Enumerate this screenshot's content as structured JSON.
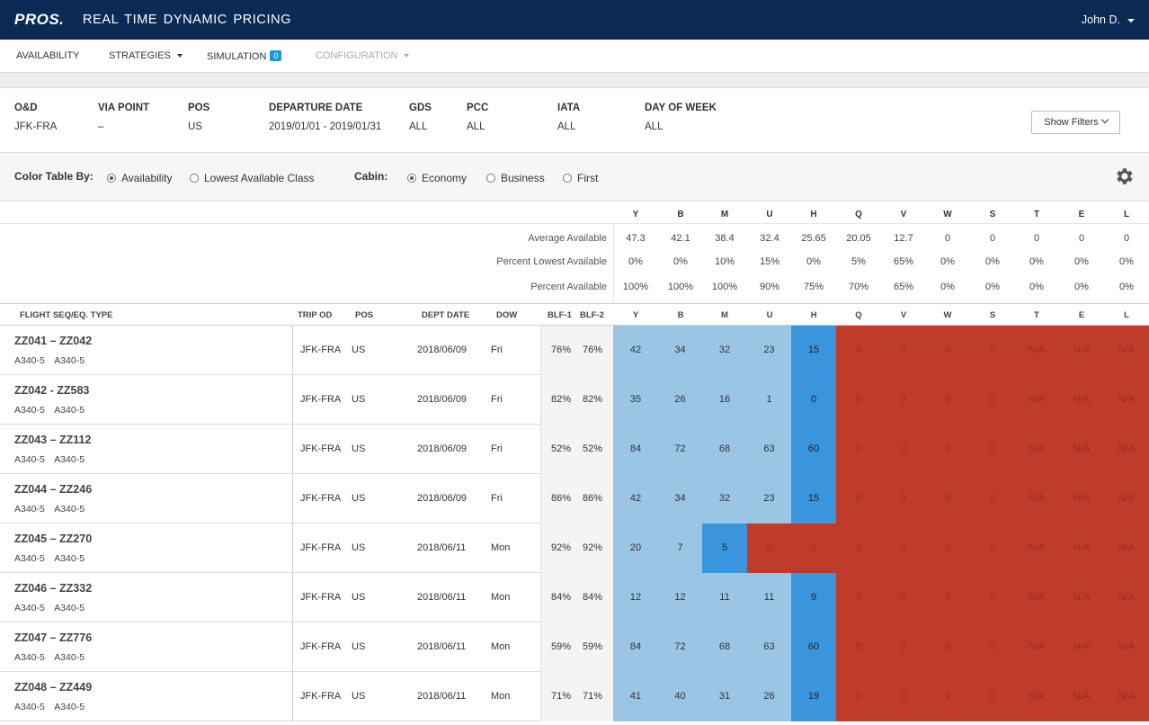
{
  "topbar": {
    "logo": "PROS.",
    "title": "REAL TIME DYNAMIC PRICING",
    "user": "John D."
  },
  "nav": {
    "availability": "AVAILABILITY",
    "strategies": "STRATEGIES",
    "simulation": "SIMULATION",
    "simulation_badge": "0",
    "configuration": "CONFIGURATION"
  },
  "filters": {
    "od": {
      "label": "O&D",
      "value": "JFK-FRA"
    },
    "via": {
      "label": "VIA POINT",
      "value": "–"
    },
    "pos": {
      "label": "POS",
      "value": "US"
    },
    "dep": {
      "label": "DEPARTURE DATE",
      "value": "2019/01/01 - 2019/01/31"
    },
    "gds": {
      "label": "GDS",
      "value": "ALL"
    },
    "pcc": {
      "label": "PCC",
      "value": "ALL"
    },
    "iata": {
      "label": "IATA",
      "value": "ALL"
    },
    "dow": {
      "label": "DAY OF WEEK",
      "value": "ALL"
    },
    "show_filters": "Show Filters"
  },
  "color_by": {
    "label": "Color Table By:",
    "options": [
      "Availability",
      "Lowest Available Class"
    ],
    "selected": "Availability"
  },
  "cabin": {
    "label": "Cabin:",
    "options": [
      "Economy",
      "Business",
      "First"
    ],
    "selected": "Economy"
  },
  "classes": [
    "Y",
    "B",
    "M",
    "U",
    "H",
    "Q",
    "V",
    "W",
    "S",
    "T",
    "E",
    "L"
  ],
  "summary": [
    {
      "label": "Average Available",
      "values": [
        "47.3",
        "42.1",
        "38.4",
        "32.4",
        "25.65",
        "20.05",
        "12.7",
        "0",
        "0",
        "0",
        "0",
        "0"
      ]
    },
    {
      "label": "Percent Lowest Available",
      "values": [
        "0%",
        "0%",
        "10%",
        "15%",
        "0%",
        "5%",
        "65%",
        "0%",
        "0%",
        "0%",
        "0%",
        "0%"
      ]
    },
    {
      "label": "Percent Available",
      "values": [
        "100%",
        "100%",
        "100%",
        "90%",
        "75%",
        "70%",
        "65%",
        "0%",
        "0%",
        "0%",
        "0%",
        "0%"
      ]
    }
  ],
  "table_headers": {
    "seq": "FLIGHT SEQ/EQ. TYPE",
    "trip_od": "TRIP OD",
    "pos": "POS",
    "dept_date": "DEPT  DATE",
    "dow": "DOW",
    "blf1": "BLF-1",
    "blf2": "BLF-2"
  },
  "rows": [
    {
      "seq": "ZZ041 – ZZ042",
      "eq": "A340-5 A340-5",
      "trip_od": "JFK-FRA",
      "pos": "US",
      "date": "2018/06/09",
      "dow": "Fri",
      "blf1": "76%",
      "blf2": "76%",
      "values": [
        "42",
        "34",
        "32",
        "23",
        "15",
        "0",
        "0",
        "0",
        "0",
        "N/A",
        "N/A",
        "N/A"
      ],
      "status": [
        "light",
        "light",
        "light",
        "light",
        "dark",
        "red",
        "red",
        "red",
        "red",
        "red",
        "red",
        "red"
      ]
    },
    {
      "seq": "ZZ042 - ZZ583",
      "eq": "A340-5 A340-5",
      "trip_od": "JFK-FRA",
      "pos": "US",
      "date": "2018/06/09",
      "dow": "Fri",
      "blf1": "82%",
      "blf2": "82%",
      "values": [
        "35",
        "26",
        "16",
        "1",
        "0",
        "0",
        "0",
        "0",
        "0",
        "N/A",
        "N/A",
        "N/A"
      ],
      "status": [
        "light",
        "light",
        "light",
        "light",
        "dark",
        "red",
        "red",
        "red",
        "red",
        "red",
        "red",
        "red"
      ]
    },
    {
      "seq": "ZZ043 – ZZ112",
      "eq": "A340-5 A340-5",
      "trip_od": "JFK-FRA",
      "pos": "US",
      "date": "2018/06/09",
      "dow": "Fri",
      "blf1": "52%",
      "blf2": "52%",
      "values": [
        "84",
        "72",
        "68",
        "63",
        "60",
        "0",
        "0",
        "0",
        "0",
        "N/A",
        "N/A",
        "N/A"
      ],
      "status": [
        "light",
        "light",
        "light",
        "light",
        "dark",
        "red",
        "red",
        "red",
        "red",
        "red",
        "red",
        "red"
      ]
    },
    {
      "seq": "ZZ044 – ZZ246",
      "eq": "A340-5 A340-5",
      "trip_od": "JFK-FRA",
      "pos": "US",
      "date": "2018/06/09",
      "dow": "Fri",
      "blf1": "86%",
      "blf2": "86%",
      "values": [
        "42",
        "34",
        "32",
        "23",
        "15",
        "0",
        "0",
        "0",
        "0",
        "N/A",
        "N/A",
        "N/A"
      ],
      "status": [
        "light",
        "light",
        "light",
        "light",
        "dark",
        "red",
        "red",
        "red",
        "red",
        "red",
        "red",
        "red"
      ]
    },
    {
      "seq": "ZZ045 – ZZ270",
      "eq": "A340-5 A340-5",
      "trip_od": "JFK-FRA",
      "pos": "US",
      "date": "2018/06/11",
      "dow": "Mon",
      "blf1": "92%",
      "blf2": "92%",
      "values": [
        "20",
        "7",
        "5",
        "0",
        "0",
        "0",
        "0",
        "0",
        "0",
        "N/A",
        "N/A",
        "N/A"
      ],
      "status": [
        "light",
        "light",
        "dark",
        "red",
        "red",
        "red",
        "red",
        "red",
        "red",
        "red",
        "red",
        "red"
      ]
    },
    {
      "seq": "ZZ046 – ZZ332",
      "eq": "A340-5 A340-5",
      "trip_od": "JFK-FRA",
      "pos": "US",
      "date": "2018/06/11",
      "dow": "Mon",
      "blf1": "84%",
      "blf2": "84%",
      "values": [
        "12",
        "12",
        "11",
        "11",
        "9",
        "0",
        "0",
        "0",
        "0",
        "N/A",
        "N/A",
        "N/A"
      ],
      "status": [
        "light",
        "light",
        "light",
        "light",
        "dark",
        "red",
        "red",
        "red",
        "red",
        "red",
        "red",
        "red"
      ]
    },
    {
      "seq": "ZZ047 – ZZ776",
      "eq": "A340-5 A340-5",
      "trip_od": "JFK-FRA",
      "pos": "US",
      "date": "2018/06/11",
      "dow": "Mon",
      "blf1": "59%",
      "blf2": "59%",
      "values": [
        "84",
        "72",
        "68",
        "63",
        "60",
        "0",
        "0",
        "0",
        "0",
        "N/A",
        "N/A",
        "N/A"
      ],
      "status": [
        "light",
        "light",
        "light",
        "light",
        "dark",
        "red",
        "red",
        "red",
        "red",
        "red",
        "red",
        "red"
      ]
    },
    {
      "seq": "ZZ048 – ZZ449",
      "eq": "A340-5 A340-5",
      "trip_od": "JFK-FRA",
      "pos": "US",
      "date": "2018/06/11",
      "dow": "Mon",
      "blf1": "71%",
      "blf2": "71%",
      "values": [
        "41",
        "40",
        "31",
        "26",
        "19",
        "0",
        "0",
        "0",
        "0",
        "N/A",
        "N/A",
        "N/A"
      ],
      "status": [
        "light",
        "light",
        "light",
        "light",
        "dark",
        "red",
        "red",
        "red",
        "red",
        "red",
        "red",
        "red"
      ]
    }
  ],
  "colors": {
    "header_bg": "#0b2a54",
    "available_light": "#9ac5e5",
    "lowest_available": "#3b95dc",
    "unavailable": "#bf3b2a",
    "badge": "#1a9ad6"
  },
  "icons": {
    "settings": "gear-icon",
    "user_menu": "caret-down-icon",
    "show_filters": "chevron-down-icon"
  }
}
